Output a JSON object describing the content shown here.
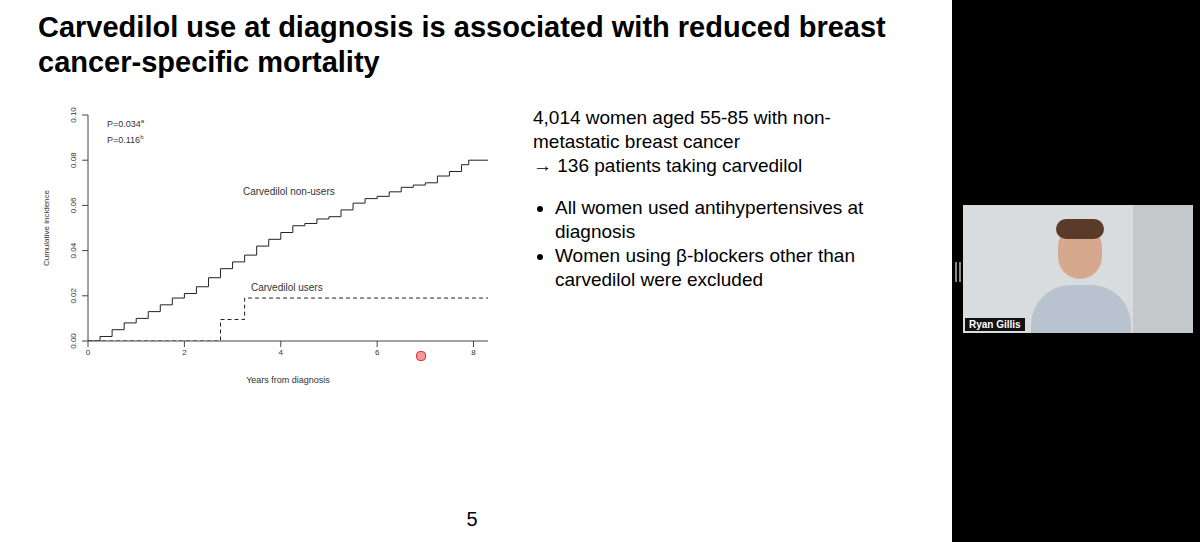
{
  "slide": {
    "title": "Carvedilol use at diagnosis is associated with reduced breast cancer-specific mortality",
    "intro": "4,014 women aged 55-85 with non-metastatic breast cancer",
    "arrow_line": "→ 136 patients taking carvedilol",
    "bullets": [
      "All women used antihypertensives at diagnosis",
      "Women using β-blockers other than carvedilol were excluded"
    ],
    "page_number": "5"
  },
  "presenter": {
    "name": "Ryan Gillis"
  },
  "chart_data": {
    "type": "line",
    "x_label": "Years from diagnosis",
    "y_label": "Cumulative incidence",
    "annotations": [
      {
        "text": "P=0.034",
        "superscript": "a"
      },
      {
        "text": "P=0.116",
        "superscript": "b"
      }
    ],
    "xlim": [
      0,
      8.3
    ],
    "xticks": [
      0,
      2,
      4,
      6,
      8
    ],
    "ylim": [
      0,
      0.1
    ],
    "yticks": [
      {
        "value": 0,
        "label": "0.00"
      },
      {
        "value": 0.02,
        "label": "0.02"
      },
      {
        "value": 0.04,
        "label": "0.04"
      },
      {
        "value": 0.06,
        "label": "0.06"
      },
      {
        "value": 0.08,
        "label": "0.08"
      },
      {
        "value": 0.1,
        "label": "0.10"
      }
    ],
    "series": [
      {
        "name": "Carvedilol non-users",
        "color": "#222222",
        "line_style": "solid",
        "x": [
          0,
          0.25,
          0.5,
          0.75,
          1,
          1.25,
          1.5,
          1.75,
          2,
          2.25,
          2.5,
          2.75,
          3,
          3.25,
          3.5,
          3.75,
          4,
          4.25,
          4.5,
          4.75,
          5,
          5.25,
          5.5,
          5.75,
          6,
          6.25,
          6.5,
          6.75,
          7,
          7.25,
          7.5,
          7.75,
          7.9,
          8.3
        ],
        "values": [
          0,
          0.002,
          0.005,
          0.008,
          0.01,
          0.013,
          0.016,
          0.019,
          0.021,
          0.024,
          0.028,
          0.032,
          0.035,
          0.038,
          0.042,
          0.045,
          0.048,
          0.051,
          0.052,
          0.054,
          0.055,
          0.058,
          0.061,
          0.063,
          0.064,
          0.066,
          0.068,
          0.069,
          0.07,
          0.073,
          0.075,
          0.078,
          0.08,
          0.08
        ]
      },
      {
        "name": "Carvedilol users",
        "color": "#222222",
        "line_style": "dashed",
        "x": [
          0,
          2.75,
          3.25,
          8.3
        ],
        "values": [
          0,
          0.0095,
          0.019,
          0.019
        ]
      }
    ]
  }
}
